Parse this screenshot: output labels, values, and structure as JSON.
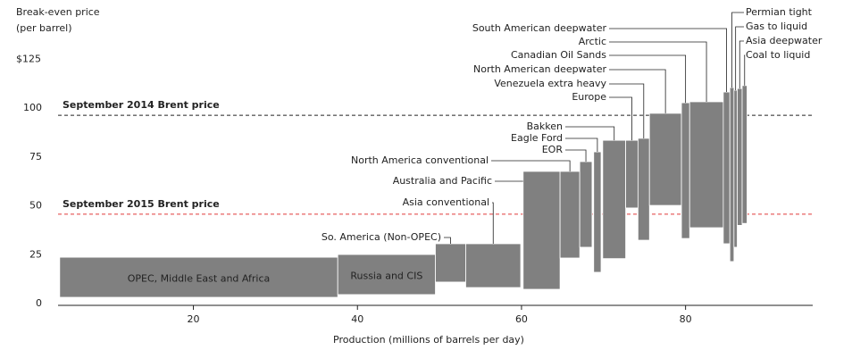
{
  "chart_data": {
    "type": "floating-bar",
    "y_label": [
      "Break-even price",
      "(per barrel)"
    ],
    "x_label": "Production (millions of barrels per day)",
    "ylim": [
      0,
      150
    ],
    "yticks": [
      0,
      25,
      50,
      75,
      100,
      {
        "value": 125,
        "label": "$125"
      }
    ],
    "xlim": [
      3.5,
      95.5
    ],
    "xticks": [
      20,
      40,
      60,
      80
    ],
    "bar_color": "#808080",
    "bars": [
      {
        "name": "OPEC, Middle East and Africa",
        "x": [
          3.7,
          37.6
        ],
        "range": [
          3.2,
          23.7
        ]
      },
      {
        "name": "Russia and CIS",
        "x": [
          37.6,
          49.5
        ],
        "range": [
          4.6,
          25.1
        ]
      },
      {
        "name": "So. America (Non-OPEC)",
        "x": [
          49.5,
          53.2
        ],
        "range": [
          11,
          30.6
        ]
      },
      {
        "name": "Asia conventional",
        "x": [
          53.2,
          59.9
        ],
        "range": [
          8.2,
          30.6
        ]
      },
      {
        "name": "Australia and Pacific",
        "x": [
          60.2,
          64.7
        ],
        "range": [
          7.3,
          67.6
        ]
      },
      {
        "name": "North America conventional",
        "x": [
          64.7,
          67.1
        ],
        "range": [
          23.3,
          67.6
        ]
      },
      {
        "name": "EOR",
        "x": [
          67.1,
          68.6
        ],
        "range": [
          28.8,
          72.6
        ]
      },
      {
        "name": "Eagle Ford",
        "x": [
          68.8,
          69.7
        ],
        "range": [
          16,
          77.6
        ]
      },
      {
        "name": "Bakken",
        "x": [
          69.9,
          72.7
        ],
        "range": [
          23,
          83.5
        ]
      },
      {
        "name": "Europe",
        "x": [
          72.7,
          74.2
        ],
        "range": [
          48.9,
          83.5
        ]
      },
      {
        "name": "Venezuela extra heavy",
        "x": [
          74.2,
          75.6
        ],
        "range": [
          32.4,
          84.5
        ]
      },
      {
        "name": "North American deepwater",
        "x": [
          75.6,
          79.5
        ],
        "range": [
          50.2,
          97.3
        ]
      },
      {
        "name": "Canadian Oil Sands",
        "x": [
          79.5,
          80.5
        ],
        "range": [
          33.3,
          102.7
        ]
      },
      {
        "name": "Arctic",
        "x": [
          80.5,
          84.6
        ],
        "range": [
          38.8,
          103.2
        ]
      },
      {
        "name": "South American deepwater",
        "x": [
          84.6,
          85.4
        ],
        "range": [
          30.6,
          108.2
        ]
      },
      {
        "name": "Permian tight",
        "x": [
          85.4,
          85.9
        ],
        "range": [
          21.5,
          110.5
        ]
      },
      {
        "name": "Gas to liquid",
        "x": [
          85.9,
          86.3
        ],
        "range": [
          28.8,
          109.1
        ]
      },
      {
        "name": "Asia deepwater",
        "x": [
          86.3,
          86.9
        ],
        "range": [
          40,
          110
        ]
      },
      {
        "name": "Coal to liquid",
        "x": [
          86.9,
          87.5
        ],
        "range": [
          41,
          111.5
        ]
      }
    ],
    "reference_lines": [
      {
        "name": "September 2014 Brent price",
        "value": 96.3,
        "color": "#222222"
      },
      {
        "name": "September 2015 Brent price",
        "value": 45.7,
        "color": "#e03a3a"
      }
    ]
  }
}
